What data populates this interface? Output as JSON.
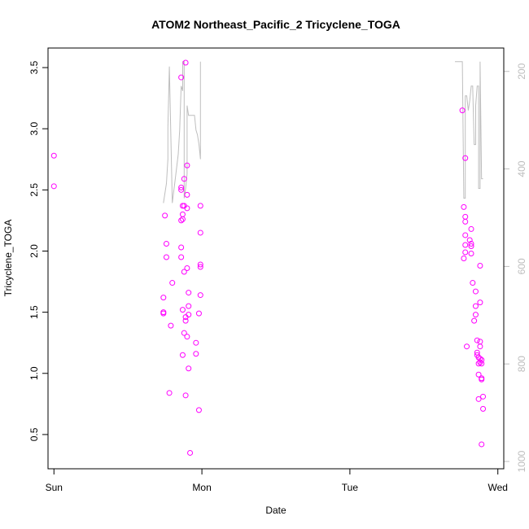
{
  "chart_data": {
    "type": "scatter",
    "title": "ATOM2 Northeast_Pacific_2 Tricyclene_TOGA",
    "xlabel": "Date",
    "ylabel": "Tricyclene_TOGA",
    "x_ticks": [
      {
        "label": "Sun",
        "value": 0
      },
      {
        "label": "Mon",
        "value": 1
      },
      {
        "label": "Tue",
        "value": 2
      },
      {
        "label": "Wed",
        "value": 3
      }
    ],
    "xlim": [
      -0.04,
      3.04
    ],
    "ylim": [
      0.22,
      3.66
    ],
    "y_ticks": [
      0.5,
      1.0,
      1.5,
      2.0,
      2.5,
      3.0,
      3.5
    ],
    "y_tick_labels": [
      "0.5",
      "1.0",
      "1.5",
      "2.0",
      "2.5",
      "3.0",
      "3.5"
    ],
    "y2_ticks": [
      200,
      400,
      600,
      800,
      1000
    ],
    "y2_tick_labels": [
      "200",
      "400",
      "600",
      "800",
      "1000"
    ],
    "y2lim": [
      1015,
      152
    ],
    "y2_reversed": true,
    "grid": false,
    "point_color": "#ff00ff",
    "line_color": "#bebebe",
    "series": [
      {
        "type": "points",
        "x": [
          0.0,
          0.0,
          0.75,
          0.76,
          0.76,
          0.74,
          0.74,
          0.74,
          0.78,
          0.8,
          0.79,
          0.86,
          0.86,
          0.86,
          0.87,
          0.87,
          0.86,
          0.87,
          0.86,
          0.86,
          0.88,
          0.87,
          0.87,
          0.88,
          0.89,
          0.88,
          0.88,
          0.89,
          0.89,
          0.89,
          0.9,
          0.9,
          0.9,
          0.9,
          0.91,
          0.9,
          0.91,
          0.91,
          0.91,
          0.92,
          0.96,
          0.96,
          0.98,
          0.99,
          0.99,
          0.99,
          0.99,
          0.99,
          0.98,
          2.76,
          2.78,
          2.77,
          2.78,
          2.78,
          2.78,
          2.78,
          2.77,
          2.78,
          2.79,
          2.82,
          2.81,
          2.82,
          2.82,
          2.82,
          2.83,
          2.84,
          2.85,
          2.85,
          2.85,
          2.86,
          2.86,
          2.86,
          2.87,
          2.87,
          2.88,
          2.88,
          2.88,
          2.88,
          2.88,
          2.88,
          2.89,
          2.89,
          2.89,
          2.89,
          2.9,
          2.9,
          2.89,
          2.87,
          2.87
        ],
        "y": [
          2.78,
          2.53,
          2.29,
          2.06,
          1.95,
          1.62,
          1.49,
          1.5,
          0.84,
          1.74,
          1.39,
          3.42,
          2.52,
          2.5,
          2.37,
          2.3,
          2.25,
          2.26,
          2.03,
          1.95,
          1.83,
          1.15,
          1.52,
          1.33,
          3.54,
          2.59,
          2.37,
          1.43,
          1.46,
          0.82,
          2.7,
          2.46,
          2.35,
          1.86,
          1.66,
          1.3,
          1.48,
          1.55,
          1.04,
          0.35,
          1.25,
          1.16,
          0.7,
          2.37,
          2.15,
          1.89,
          1.87,
          1.64,
          1.49,
          3.15,
          2.76,
          2.36,
          2.28,
          2.24,
          2.13,
          2.05,
          1.94,
          1.99,
          1.22,
          2.18,
          2.09,
          2.06,
          2.04,
          1.98,
          1.74,
          1.43,
          1.67,
          1.55,
          1.48,
          1.27,
          1.17,
          1.15,
          1.08,
          0.79,
          1.88,
          1.58,
          1.26,
          1.22,
          1.12,
          1.09,
          1.11,
          1.08,
          0.96,
          0.95,
          0.81,
          0.71,
          0.42,
          0.99,
          1.13
        ]
      },
      {
        "type": "line",
        "segments": [
          {
            "x": [
              0.74,
              0.76,
              0.77,
              0.77,
              0.78,
              0.78,
              0.8,
              0.82,
              0.84,
              0.85,
              0.86,
              0.87,
              0.87,
              0.88,
              0.88,
              0.89,
              0.9,
              0.9,
              0.91,
              0.92,
              0.95,
              0.96,
              0.97,
              0.98,
              0.99,
              0.99
            ],
            "y": [
              470,
              430,
              380,
              315,
              190,
              190,
              470,
              420,
              370,
              320,
              230,
              240,
              180,
              180,
              460,
              440,
              410,
              270,
              290,
              290,
              290,
              320,
              330,
              350,
              380,
              180
            ]
          },
          {
            "x": [
              2.71,
              2.76,
              2.77,
              2.78,
              2.78,
              2.79,
              2.8,
              2.81,
              2.82,
              2.83,
              2.84,
              2.85,
              2.85,
              2.86,
              2.87,
              2.87,
              2.88,
              2.88,
              2.89,
              2.9
            ],
            "y": [
              180,
              180,
              460,
              460,
              250,
              250,
              280,
              260,
              230,
              230,
              350,
              350,
              270,
              230,
              230,
              440,
              440,
              180,
              420,
              420
            ]
          }
        ]
      }
    ]
  }
}
